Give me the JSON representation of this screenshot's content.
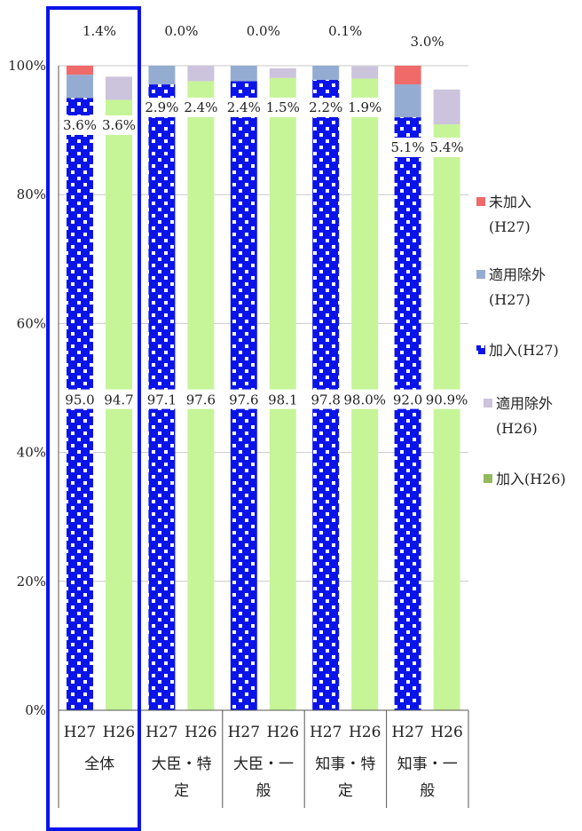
{
  "chart_data": {
    "type": "bar",
    "stacked": true,
    "grid": true,
    "legend_position": "right",
    "ylim": [
      0,
      100
    ],
    "y_ticks": [
      "0%",
      "20%",
      "40%",
      "60%",
      "80%",
      "100%"
    ],
    "groups": [
      {
        "label_lines": [
          "全体"
        ],
        "highlighted": true
      },
      {
        "label_lines": [
          "大臣・特",
          "定"
        ]
      },
      {
        "label_lines": [
          "大臣・一",
          "般"
        ]
      },
      {
        "label_lines": [
          "知事・特",
          "定"
        ]
      },
      {
        "label_lines": [
          "知事・一",
          "般"
        ]
      }
    ],
    "bars": [
      {
        "group": 0,
        "year": "H27",
        "kanyu": 95.0,
        "tekiyo": 3.6,
        "mikanyu": 1.4,
        "kanyu_label": "95.0",
        "tekiyo_label": "3.6%",
        "mikanyu_label": "1.4%"
      },
      {
        "group": 0,
        "year": "H26",
        "kanyu": 94.7,
        "tekiyo": 3.6,
        "kanyu_label": "94.7",
        "tekiyo_label": "3.6%"
      },
      {
        "group": 1,
        "year": "H27",
        "kanyu": 97.1,
        "tekiyo": 2.9,
        "mikanyu": 0.0,
        "kanyu_label": "97.1",
        "tekiyo_label": "2.9%",
        "mikanyu_label": "0.0%"
      },
      {
        "group": 1,
        "year": "H26",
        "kanyu": 97.6,
        "tekiyo": 2.4,
        "kanyu_label": "97.6",
        "tekiyo_label": "2.4%"
      },
      {
        "group": 2,
        "year": "H27",
        "kanyu": 97.6,
        "tekiyo": 2.4,
        "mikanyu": 0.0,
        "kanyu_label": "97.6",
        "tekiyo_label": "2.4%",
        "mikanyu_label": "0.0%"
      },
      {
        "group": 2,
        "year": "H26",
        "kanyu": 98.1,
        "tekiyo": 1.5,
        "kanyu_label": "98.1",
        "tekiyo_label": "1.5%"
      },
      {
        "group": 3,
        "year": "H27",
        "kanyu": 97.8,
        "tekiyo": 2.2,
        "mikanyu": 0.1,
        "kanyu_label": "97.8",
        "tekiyo_label": "2.2%",
        "mikanyu_label": "0.1%"
      },
      {
        "group": 3,
        "year": "H26",
        "kanyu": 98.0,
        "tekiyo": 1.9,
        "kanyu_label": "98.0%",
        "tekiyo_label": "1.9%"
      },
      {
        "group": 4,
        "year": "H27",
        "kanyu": 92.0,
        "tekiyo": 5.1,
        "mikanyu": 3.0,
        "kanyu_label": "92.0",
        "tekiyo_label": "5.1%",
        "mikanyu_label": "3.0%"
      },
      {
        "group": 4,
        "year": "H26",
        "kanyu": 90.9,
        "tekiyo": 5.4,
        "kanyu_label": "90.9%",
        "tekiyo_label": "5.4%"
      }
    ],
    "legend": [
      {
        "key": "mikanyu_h27",
        "lines": [
          "未加入",
          "(H27)"
        ]
      },
      {
        "key": "tekiyo_h27",
        "lines": [
          "適用除外",
          "(H27)"
        ]
      },
      {
        "key": "kanyu_h27",
        "lines": [
          "加入(H27)"
        ]
      },
      {
        "key": "tekiyo_h26",
        "lines": [
          "適用除外",
          "(H26)"
        ]
      },
      {
        "key": "kanyu_h26",
        "lines": [
          "加入(H26)"
        ]
      }
    ],
    "colors": {
      "mikanyu_h27": "#f06a6a",
      "tekiyo_h27": "#95acd2",
      "kanyu_h27": "#0a14e8",
      "tekiyo_h26": "#ccc3dc",
      "kanyu_h26": "#c6f598",
      "highlight": "#0a14e8"
    }
  }
}
